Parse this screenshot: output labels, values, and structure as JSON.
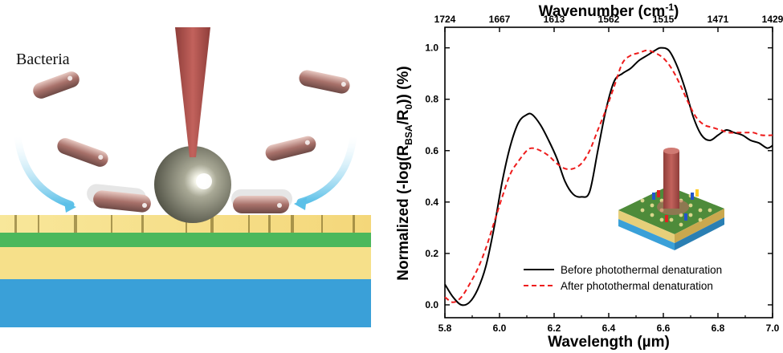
{
  "schematic": {
    "label": "Bacteria",
    "colors": {
      "gold": "#f6e08a",
      "green": "#4cb85c",
      "blue": "#3aa0d8",
      "tip": "#c2625c",
      "arrow": "#5bc0e8"
    }
  },
  "chart_data": {
    "type": "line",
    "xlabel": "Wavelength (µm)",
    "x2label": "Wavenumber (cm-1)",
    "ylabel": "Normalized (-log(RBSA/R0)) (%)",
    "xlim": [
      5.8,
      7.0
    ],
    "ylim": [
      -0.05,
      1.08
    ],
    "x_ticks": [
      "5.8",
      "6.0",
      "6.2",
      "6.4",
      "6.6",
      "6.8",
      "7.0"
    ],
    "y_ticks": [
      "0.0",
      "0.2",
      "0.4",
      "0.6",
      "0.8",
      "1.0"
    ],
    "x2_ticks": [
      "1724",
      "1667",
      "1613",
      "1562",
      "1515",
      "1471",
      "1429"
    ],
    "legend_position": "bottom-right",
    "series": [
      {
        "name": "Before photothermal denaturation",
        "color": "#000000",
        "dash": "solid",
        "x": [
          5.8,
          5.83,
          5.86,
          5.89,
          5.92,
          5.95,
          5.98,
          6.01,
          6.04,
          6.07,
          6.1,
          6.12,
          6.15,
          6.18,
          6.21,
          6.24,
          6.27,
          6.3,
          6.33,
          6.36,
          6.39,
          6.42,
          6.45,
          6.48,
          6.51,
          6.54,
          6.57,
          6.59,
          6.62,
          6.65,
          6.68,
          6.71,
          6.74,
          6.77,
          6.8,
          6.83,
          6.86,
          6.89,
          6.92,
          6.95,
          6.98,
          7.0
        ],
        "y": [
          0.08,
          0.03,
          0.0,
          0.01,
          0.06,
          0.15,
          0.3,
          0.48,
          0.62,
          0.71,
          0.74,
          0.74,
          0.7,
          0.64,
          0.57,
          0.48,
          0.43,
          0.42,
          0.44,
          0.6,
          0.76,
          0.87,
          0.9,
          0.92,
          0.95,
          0.97,
          0.99,
          1.0,
          0.99,
          0.93,
          0.84,
          0.73,
          0.66,
          0.64,
          0.66,
          0.68,
          0.67,
          0.66,
          0.64,
          0.63,
          0.61,
          0.62
        ]
      },
      {
        "name": "After photothermal denaturation",
        "color": "#ee1c1c",
        "dash": "dashed",
        "x": [
          5.8,
          5.83,
          5.86,
          5.89,
          5.92,
          5.95,
          5.98,
          6.01,
          6.04,
          6.07,
          6.1,
          6.12,
          6.15,
          6.18,
          6.21,
          6.24,
          6.27,
          6.3,
          6.33,
          6.36,
          6.39,
          6.42,
          6.45,
          6.48,
          6.51,
          6.54,
          6.57,
          6.6,
          6.63,
          6.66,
          6.69,
          6.72,
          6.75,
          6.78,
          6.81,
          6.84,
          6.87,
          6.9,
          6.93,
          6.96,
          7.0
        ],
        "y": [
          0.03,
          0.01,
          0.03,
          0.08,
          0.14,
          0.22,
          0.32,
          0.42,
          0.51,
          0.56,
          0.6,
          0.61,
          0.6,
          0.58,
          0.55,
          0.53,
          0.53,
          0.55,
          0.6,
          0.68,
          0.76,
          0.85,
          0.94,
          0.97,
          0.98,
          0.99,
          0.98,
          0.96,
          0.92,
          0.86,
          0.79,
          0.73,
          0.7,
          0.69,
          0.68,
          0.67,
          0.67,
          0.67,
          0.67,
          0.66,
          0.66
        ]
      }
    ]
  }
}
